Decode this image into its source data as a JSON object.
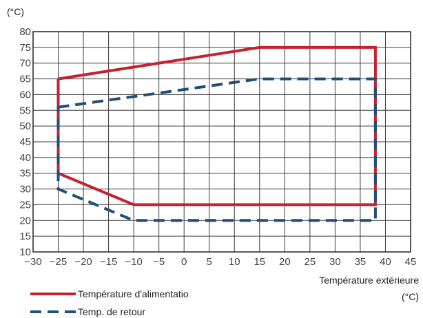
{
  "chart_data": {
    "type": "line",
    "title": "",
    "y_unit_label": "(°C)",
    "xlabel": "Température extérieure",
    "x_unit_label": "(°C)",
    "xlim": [
      -30,
      45
    ],
    "ylim": [
      10,
      80
    ],
    "x_ticks": [
      -30,
      -25,
      -20,
      -15,
      -10,
      -5,
      0,
      5,
      10,
      15,
      20,
      25,
      30,
      35,
      40,
      45
    ],
    "y_ticks": [
      10,
      15,
      20,
      25,
      30,
      35,
      40,
      45,
      50,
      55,
      60,
      65,
      70,
      75,
      80
    ],
    "x_tick_labels": [
      "−30",
      "−25",
      "−20",
      "−15",
      "−10",
      "−5",
      "0",
      "5",
      "10",
      "15",
      "20",
      "25",
      "30",
      "35",
      "40",
      "45"
    ],
    "y_tick_labels": [
      "10",
      "15",
      "20",
      "25",
      "30",
      "35",
      "40",
      "45",
      "50",
      "55",
      "60",
      "65",
      "70",
      "75",
      "80"
    ],
    "grid": true,
    "legend_position": "bottom-left",
    "series": [
      {
        "name": "Température d'alimentatio",
        "color": "#c8202e",
        "style": "solid",
        "x": [
          -25,
          15,
          38,
          38,
          -10,
          -25,
          -25
        ],
        "y": [
          65,
          75,
          75,
          25,
          25,
          35,
          65
        ]
      },
      {
        "name": "Temp. de retour",
        "color": "#1f4e79",
        "style": "dashed",
        "x": [
          -25,
          15,
          38,
          38,
          -10,
          -25,
          -25
        ],
        "y": [
          56,
          65,
          65,
          20,
          20,
          30,
          56
        ]
      }
    ]
  }
}
